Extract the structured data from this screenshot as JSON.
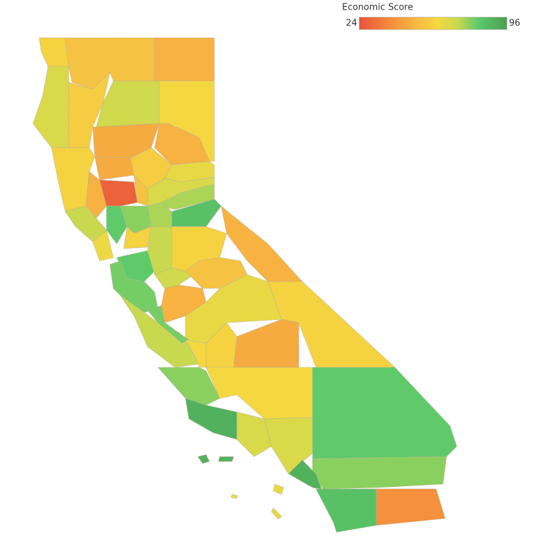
{
  "legend": {
    "title": "Economic Score",
    "min": 24,
    "max": 96
  },
  "regions": {
    "values": [
      60,
      55,
      50,
      68,
      58,
      70,
      62,
      48,
      50,
      60,
      48,
      58,
      65,
      50,
      28,
      55,
      68,
      75,
      85,
      72,
      82,
      78,
      75,
      64,
      60,
      82,
      80,
      72,
      70,
      60,
      50,
      55,
      50,
      65,
      60,
      72,
      80,
      62,
      48,
      60,
      78,
      62,
      90,
      68,
      68,
      82,
      78,
      90,
      85,
      40,
      90,
      90,
      65,
      65,
      65
    ]
  }
}
